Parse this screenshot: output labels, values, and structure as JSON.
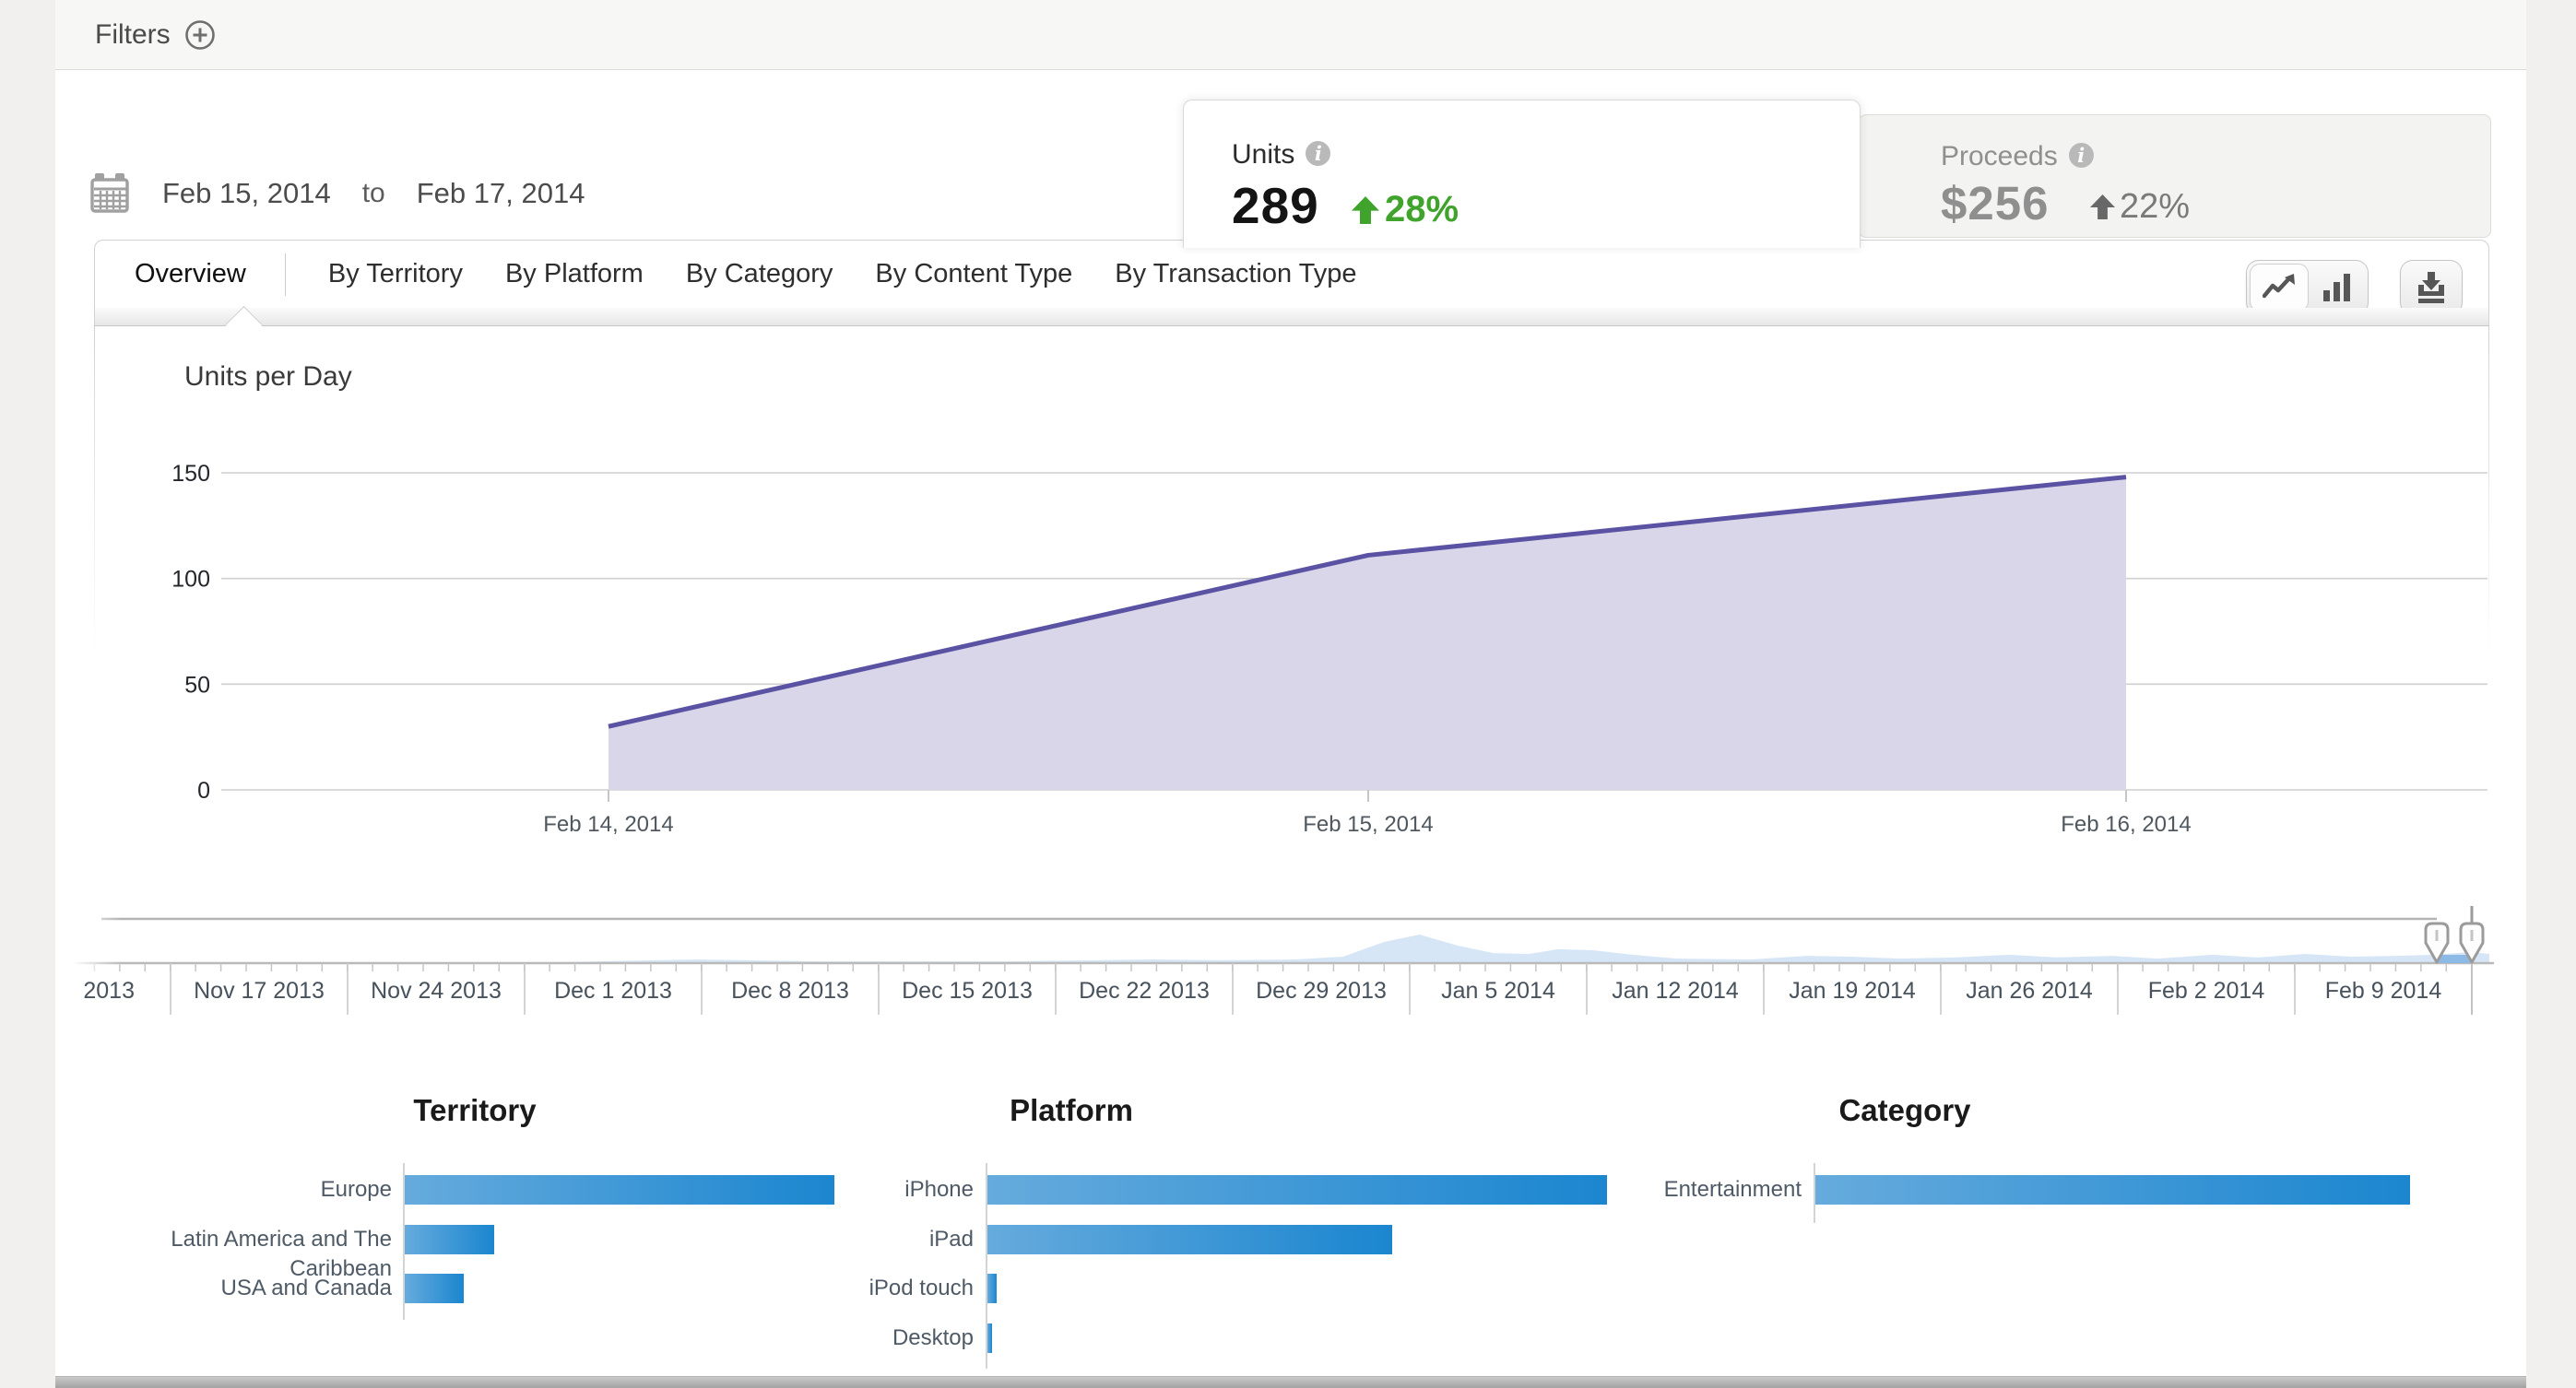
{
  "filters_bar": {
    "label": "Filters",
    "add_icon": "plus-circle-icon"
  },
  "date_picker": {
    "icon": "calendar-icon",
    "start": "Feb 15, 2014",
    "separator": "to",
    "end": "Feb 17, 2014"
  },
  "metric_tabs": {
    "units": {
      "label": "Units",
      "info_icon": "info-icon",
      "value": "289",
      "trend_icon": "arrow-up-icon",
      "change": "28%",
      "trend_color": "#3fa32c",
      "selected": true
    },
    "proceeds": {
      "label": "Proceeds",
      "info_icon": "info-icon",
      "value": "$256",
      "trend_icon": "arrow-up-icon",
      "change": "22%",
      "trend_color": "#686868",
      "selected": false
    }
  },
  "view_tabs": [
    {
      "label": "Overview",
      "active": true
    },
    {
      "label": "By Territory",
      "active": false
    },
    {
      "label": "By Platform",
      "active": false
    },
    {
      "label": "By Category",
      "active": false
    },
    {
      "label": "By Content Type",
      "active": false
    },
    {
      "label": "By Transaction Type",
      "active": false
    }
  ],
  "toolbar": {
    "chart_type_buttons": [
      {
        "icon": "line-chart-icon",
        "selected": true
      },
      {
        "icon": "bar-chart-icon",
        "selected": false
      }
    ],
    "download_button": {
      "icon": "download-icon"
    }
  },
  "chart_data": [
    {
      "id": "units_per_day",
      "type": "area",
      "title": "Units per Day",
      "x": [
        "Feb 14, 2014",
        "Feb 15, 2014",
        "Feb 16, 2014"
      ],
      "values": [
        30,
        111,
        148
      ],
      "yticks": [
        0,
        50,
        100,
        150
      ],
      "ylim": [
        0,
        150
      ],
      "grid": true,
      "line_color": "#5a52a2",
      "fill_color": "#d9d6e9"
    },
    {
      "id": "territory",
      "type": "bar",
      "title": "Territory",
      "categories": [
        "Europe",
        "Latin America and The Caribbean",
        "USA and Canada"
      ],
      "values_relative": [
        1.0,
        0.208,
        0.138
      ],
      "bar_color_start": "#66abdd",
      "bar_color_end": "#1b86cf"
    },
    {
      "id": "platform",
      "type": "bar",
      "title": "Platform",
      "categories": [
        "iPhone",
        "iPad",
        "iPod touch",
        "Desktop"
      ],
      "values_relative": [
        1.0,
        0.654,
        0.015,
        0.007
      ],
      "bar_color_start": "#66abdd",
      "bar_color_end": "#1b86cf"
    },
    {
      "id": "category",
      "type": "bar",
      "title": "Category",
      "categories": [
        "Entertainment"
      ],
      "values_relative": [
        1.0
      ],
      "bar_color_start": "#66abdd",
      "bar_color_end": "#1b86cf"
    }
  ],
  "timeline": {
    "partial_label": "2013",
    "week_labels": [
      "Nov 17 2013",
      "Nov 24 2013",
      "Dec 1 2013",
      "Dec 8 2013",
      "Dec 15 2013",
      "Dec 22 2013",
      "Dec 29 2013",
      "Jan 5 2014",
      "Jan 12 2014",
      "Jan 19 2014",
      "Jan 26 2014",
      "Feb 2 2014",
      "Feb 9 2014"
    ],
    "selection_color": "#8cbae4",
    "activity_sparkline": [
      [
        0.0,
        0.0
      ],
      [
        0.19,
        0.0
      ],
      [
        0.25,
        0.1
      ],
      [
        0.3,
        0.03
      ],
      [
        0.38,
        0.03
      ],
      [
        0.44,
        0.1
      ],
      [
        0.47,
        0.07
      ],
      [
        0.5,
        0.1
      ],
      [
        0.52,
        0.2
      ],
      [
        0.537,
        0.73
      ],
      [
        0.552,
        1.0
      ],
      [
        0.568,
        0.6
      ],
      [
        0.583,
        0.33
      ],
      [
        0.598,
        0.3
      ],
      [
        0.61,
        0.47
      ],
      [
        0.625,
        0.43
      ],
      [
        0.641,
        0.27
      ],
      [
        0.66,
        0.13
      ],
      [
        0.691,
        0.1
      ],
      [
        0.714,
        0.23
      ],
      [
        0.733,
        0.2
      ],
      [
        0.753,
        0.13
      ],
      [
        0.776,
        0.17
      ],
      [
        0.799,
        0.27
      ],
      [
        0.819,
        0.17
      ],
      [
        0.842,
        0.23
      ],
      [
        0.861,
        0.13
      ],
      [
        0.884,
        0.27
      ],
      [
        0.903,
        0.17
      ],
      [
        0.923,
        0.3
      ],
      [
        0.942,
        0.2
      ],
      [
        0.961,
        0.23
      ],
      [
        0.977,
        0.27
      ],
      [
        0.992,
        0.37
      ],
      [
        1.0,
        0.3
      ]
    ]
  }
}
